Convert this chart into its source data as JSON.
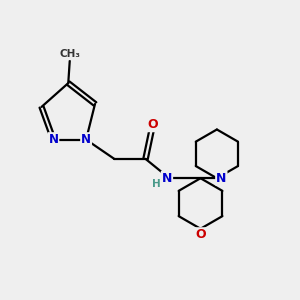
{
  "background_color": "#efefef",
  "bond_color": "#000000",
  "atom_colors": {
    "N": "#0000cc",
    "O": "#cc0000",
    "C": "#000000",
    "H": "#4a9a8a"
  },
  "figsize": [
    3.0,
    3.0
  ],
  "dpi": 100
}
